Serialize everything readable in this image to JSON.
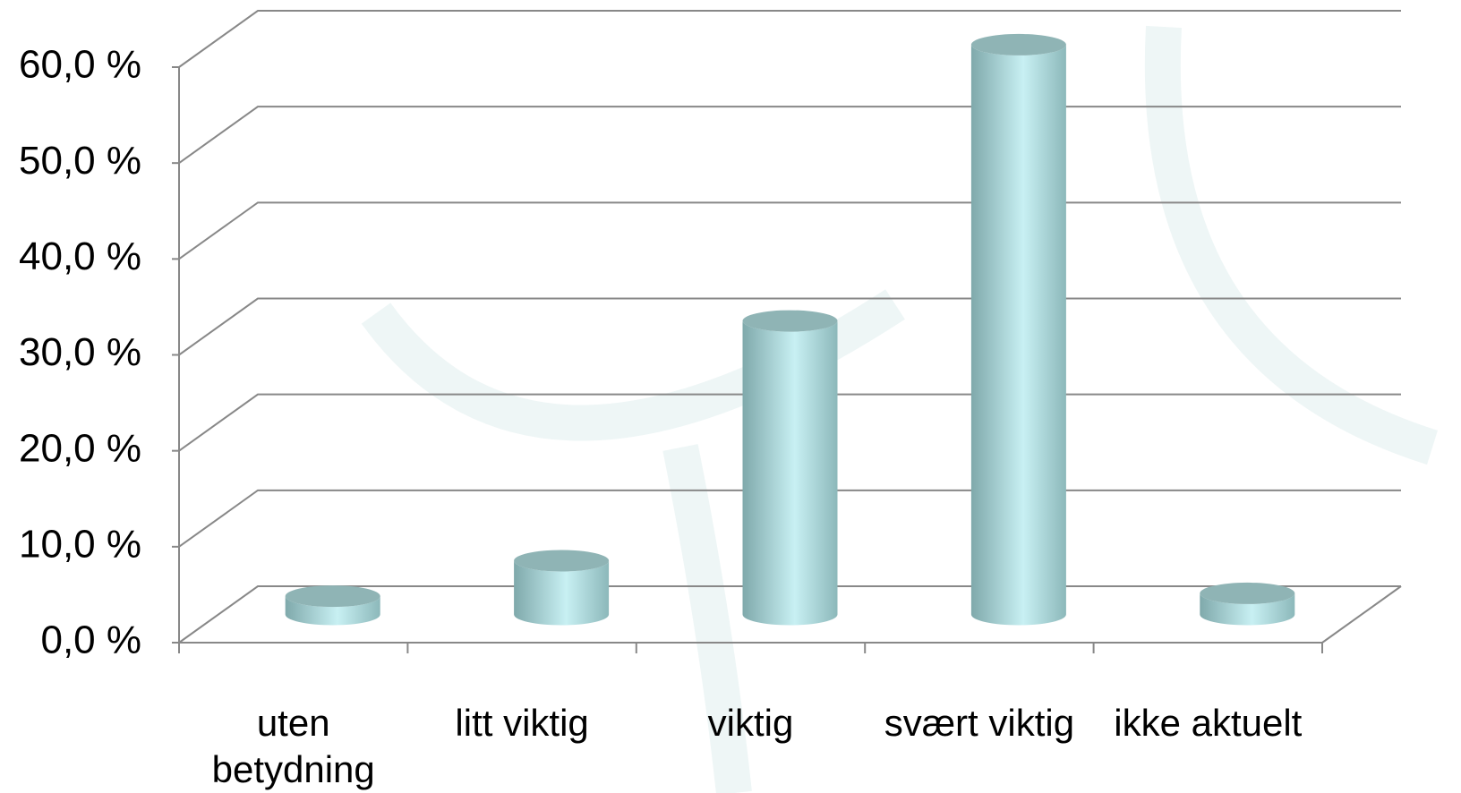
{
  "chart_data": {
    "type": "cylinder",
    "categories": [
      "uten betydning",
      "litt viktig",
      "viktig",
      "svært viktig",
      "ikke aktuelt"
    ],
    "values": [
      1.9,
      5.6,
      30.6,
      59.4,
      2.2
    ],
    "color": "#a9dde0",
    "ylim": [
      0,
      60
    ],
    "yticks": [
      {
        "value": 0,
        "label": "0,0 %"
      },
      {
        "value": 10,
        "label": "10,0 %"
      },
      {
        "value": 20,
        "label": "20,0 %"
      },
      {
        "value": 30,
        "label": "30,0 %"
      },
      {
        "value": 40,
        "label": "40,0 %"
      },
      {
        "value": 50,
        "label": "50,0 %"
      },
      {
        "value": 60,
        "label": "60,0 %"
      }
    ],
    "grid": true
  }
}
